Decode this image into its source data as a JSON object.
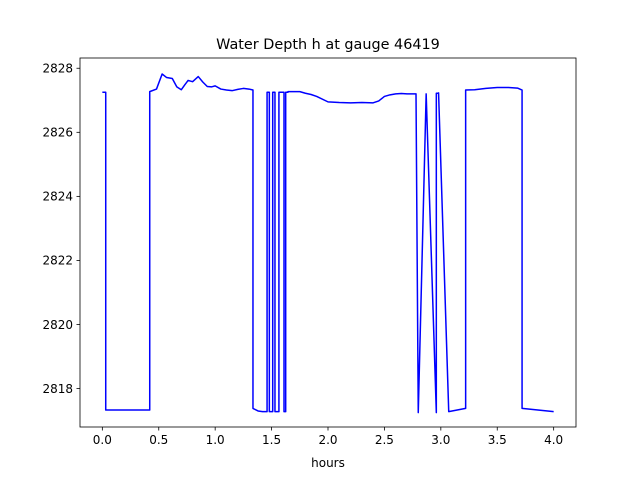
{
  "chart_data": {
    "type": "line",
    "title": "Water Depth h at gauge 46419",
    "xlabel": "hours",
    "ylabel": "",
    "xlim": [
      -0.198,
      4.198
    ],
    "ylim": [
      2816.8,
      2828.32
    ],
    "xticks": [
      0.0,
      0.5,
      1.0,
      1.5,
      2.0,
      2.5,
      3.0,
      3.5,
      4.0
    ],
    "xtick_labels": [
      "0.0",
      "0.5",
      "1.0",
      "1.5",
      "2.0",
      "2.5",
      "3.0",
      "3.5",
      "4.0"
    ],
    "yticks": [
      2818,
      2820,
      2822,
      2824,
      2826,
      2828
    ],
    "ytick_labels": [
      "2818",
      "2820",
      "2822",
      "2824",
      "2826",
      "2828"
    ],
    "grid": false,
    "legend": "none",
    "series": [
      {
        "color": "#0000ff",
        "x": [
          0.0,
          0.03,
          0.03,
          0.42,
          0.42,
          0.48,
          0.53,
          0.57,
          0.62,
          0.66,
          0.7,
          0.73,
          0.76,
          0.8,
          0.85,
          0.89,
          0.93,
          0.97,
          1.0,
          1.05,
          1.1,
          1.15,
          1.2,
          1.25,
          1.3,
          1.335,
          1.335,
          1.38,
          1.42,
          1.46,
          1.46,
          1.48,
          1.48,
          1.51,
          1.51,
          1.53,
          1.53,
          1.565,
          1.565,
          1.61,
          1.61,
          1.625,
          1.625,
          1.645,
          1.645,
          1.7,
          1.75,
          1.8,
          1.85,
          1.9,
          2.0,
          2.1,
          2.2,
          2.3,
          2.4,
          2.45,
          2.5,
          2.55,
          2.6,
          2.65,
          2.7,
          2.78,
          2.8,
          2.8,
          2.87,
          2.87,
          2.96,
          2.96,
          2.98,
          2.98,
          3.07,
          3.07,
          3.22,
          3.22,
          3.3,
          3.4,
          3.5,
          3.6,
          3.68,
          3.72,
          3.72,
          4.0
        ],
        "y": [
          2827.25,
          2827.25,
          2817.33,
          2817.33,
          2827.27,
          2827.35,
          2827.82,
          2827.71,
          2827.68,
          2827.42,
          2827.33,
          2827.48,
          2827.62,
          2827.58,
          2827.74,
          2827.57,
          2827.43,
          2827.42,
          2827.45,
          2827.35,
          2827.32,
          2827.3,
          2827.34,
          2827.37,
          2827.35,
          2827.32,
          2817.38,
          2817.3,
          2817.28,
          2817.28,
          2827.25,
          2827.25,
          2817.28,
          2817.28,
          2827.25,
          2827.25,
          2817.28,
          2817.28,
          2827.25,
          2827.25,
          2817.28,
          2817.28,
          2827.25,
          2827.25,
          2827.27,
          2827.27,
          2827.27,
          2827.22,
          2827.18,
          2827.12,
          2826.95,
          2826.93,
          2826.92,
          2826.93,
          2826.92,
          2826.98,
          2827.12,
          2827.17,
          2827.2,
          2827.21,
          2827.2,
          2827.2,
          2817.25,
          2817.25,
          2827.2,
          2827.2,
          2817.25,
          2827.22,
          2827.22,
          2827.23,
          2817.28,
          2817.28,
          2817.38,
          2827.32,
          2827.33,
          2827.37,
          2827.4,
          2827.4,
          2827.38,
          2827.32,
          2817.38,
          2817.28
        ]
      }
    ]
  }
}
